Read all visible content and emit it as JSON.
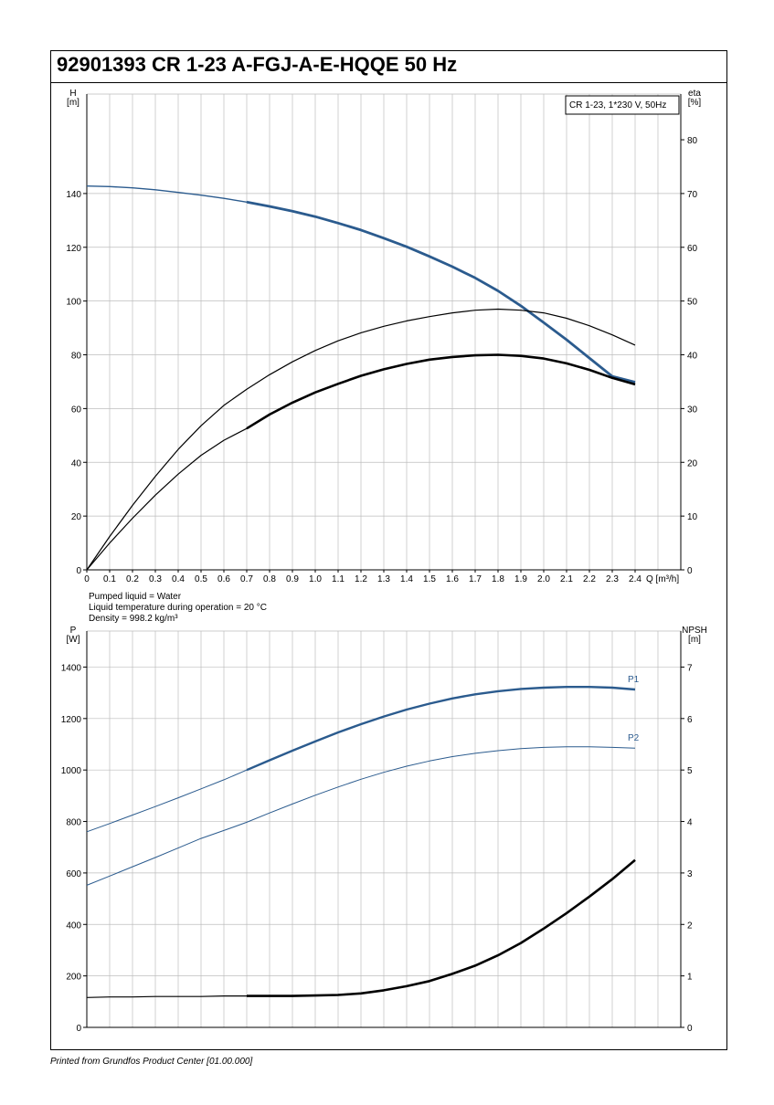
{
  "page": {
    "title": "92901393 CR 1-23 A-FGJ-A-E-HQQE 50 Hz",
    "footer": "Printed from Grundfos Product Center [01.00.000]",
    "info_lines": [
      "Pumped liquid = Water",
      "Liquid temperature during operation = 20 °C",
      "Density = 998.2 kg/m³"
    ]
  },
  "chart_data": [
    {
      "type": "line",
      "legend_box": "CR 1-23, 1*230 V, 50Hz",
      "legend_placement": "top-right",
      "grid": true,
      "x_axis": {
        "label": "Q [m³/h]",
        "range": [
          0,
          2.6
        ],
        "ticks": [
          0,
          0.1,
          0.2,
          0.3,
          0.4,
          0.5,
          0.6,
          0.7,
          0.8,
          0.9,
          1.0,
          1.1,
          1.2,
          1.3,
          1.4,
          1.5,
          1.6,
          1.7,
          1.8,
          1.9,
          2.0,
          2.1,
          2.2,
          2.3,
          2.4
        ],
        "tick_labels": [
          "0",
          "0.1",
          "0.2",
          "0.3",
          "0.4",
          "0.5",
          "0.6",
          "0.7",
          "0.8",
          "0.9",
          "1.0",
          "1.1",
          "1.2",
          "1.3",
          "1.4",
          "1.5",
          "1.6",
          "1.7",
          "1.8",
          "1.9",
          "2.0",
          "2.1",
          "2.2",
          "2.3",
          "2.4"
        ]
      },
      "y_axis_left": {
        "label_top": "H",
        "label_unit": "[m]",
        "range": [
          0,
          177
        ],
        "ticks": [
          0,
          20,
          40,
          60,
          80,
          100,
          120,
          140
        ]
      },
      "y_axis_right": {
        "label_top": "eta",
        "label_unit": "[%]",
        "range": [
          0,
          88.5
        ],
        "ticks": [
          0,
          10,
          20,
          30,
          40,
          50,
          60,
          70,
          80
        ]
      },
      "series": [
        {
          "axis": "left",
          "color": "#2b5b8e",
          "width": 1.4,
          "bold_from": 0.7,
          "x": [
            0,
            0.1,
            0.2,
            0.3,
            0.4,
            0.5,
            0.6,
            0.7,
            0.8,
            0.9,
            1.0,
            1.1,
            1.2,
            1.3,
            1.4,
            1.5,
            1.6,
            1.7,
            1.8,
            1.9,
            2.0,
            2.1,
            2.2,
            2.3,
            2.4
          ],
          "y": [
            142.8,
            142.6,
            142.1,
            141.4,
            140.4,
            139.4,
            138.2,
            136.8,
            135.2,
            133.4,
            131.4,
            129.0,
            126.4,
            123.4,
            120.2,
            116.6,
            112.8,
            108.6,
            103.8,
            98.2,
            92.0,
            85.6,
            78.8,
            72.0,
            69.8
          ]
        },
        {
          "axis": "right",
          "color": "#000000",
          "width": 1.2,
          "x": [
            0,
            0.1,
            0.2,
            0.3,
            0.4,
            0.5,
            0.6,
            0.7,
            0.8,
            0.9,
            1.0,
            1.1,
            1.2,
            1.3,
            1.4,
            1.5,
            1.6,
            1.7,
            1.8,
            1.9,
            2.0,
            2.1,
            2.2,
            2.3,
            2.4
          ],
          "y": [
            0,
            6.2,
            12.0,
            17.4,
            22.4,
            26.8,
            30.6,
            33.6,
            36.3,
            38.7,
            40.8,
            42.6,
            44.1,
            45.3,
            46.3,
            47.1,
            47.8,
            48.3,
            48.5,
            48.3,
            47.8,
            46.8,
            45.4,
            43.7,
            41.8
          ]
        },
        {
          "axis": "right",
          "color": "#000000",
          "width": 1.2,
          "bold_from": 0.7,
          "x": [
            0,
            0.1,
            0.2,
            0.3,
            0.4,
            0.5,
            0.6,
            0.7,
            0.8,
            0.9,
            1.0,
            1.1,
            1.2,
            1.3,
            1.4,
            1.5,
            1.6,
            1.7,
            1.8,
            1.9,
            2.0,
            2.1,
            2.2,
            2.3,
            2.4
          ],
          "y": [
            0,
            5.0,
            9.6,
            13.9,
            17.8,
            21.3,
            24.1,
            26.3,
            28.9,
            31.1,
            33.0,
            34.6,
            36.1,
            37.3,
            38.3,
            39.1,
            39.6,
            39.9,
            40.0,
            39.8,
            39.3,
            38.4,
            37.2,
            35.7,
            34.5
          ]
        }
      ]
    },
    {
      "type": "line",
      "grid": true,
      "x_axis": {
        "range": [
          0,
          2.6
        ]
      },
      "y_axis_left": {
        "label_top": "P",
        "label_unit": "[W]",
        "range": [
          0,
          1540
        ],
        "ticks": [
          0,
          200,
          400,
          600,
          800,
          1000,
          1200,
          1400
        ]
      },
      "y_axis_right": {
        "label_top": "NPSH",
        "label_unit": "[m]",
        "range": [
          0,
          7.7
        ],
        "ticks": [
          0,
          1,
          2,
          3,
          4,
          5,
          6,
          7
        ]
      },
      "series": [
        {
          "name": "P1",
          "axis": "left",
          "color": "#2b5b8e",
          "width": 1.0,
          "bold_from": 0.7,
          "x": [
            0,
            0.1,
            0.2,
            0.3,
            0.4,
            0.5,
            0.6,
            0.7,
            0.8,
            0.9,
            1.0,
            1.1,
            1.2,
            1.3,
            1.4,
            1.5,
            1.6,
            1.7,
            1.8,
            1.9,
            2.0,
            2.1,
            2.2,
            2.3,
            2.4
          ],
          "y": [
            760,
            792,
            825,
            858,
            892,
            927,
            962,
            1000,
            1038,
            1075,
            1111,
            1146,
            1178,
            1208,
            1235,
            1258,
            1278,
            1294,
            1306,
            1315,
            1320,
            1323,
            1323,
            1320,
            1313
          ]
        },
        {
          "name": "P2",
          "axis": "left",
          "color": "#2b5b8e",
          "width": 1.0,
          "x": [
            0,
            0.1,
            0.2,
            0.3,
            0.4,
            0.5,
            0.6,
            0.7,
            0.8,
            0.9,
            1.0,
            1.1,
            1.2,
            1.3,
            1.4,
            1.5,
            1.6,
            1.7,
            1.8,
            1.9,
            2.0,
            2.1,
            2.2,
            2.3,
            2.4
          ],
          "y": [
            552,
            588,
            624,
            660,
            697,
            734,
            765,
            797,
            833,
            868,
            902,
            934,
            964,
            991,
            1015,
            1035,
            1052,
            1065,
            1075,
            1083,
            1088,
            1090,
            1090,
            1088,
            1085
          ]
        },
        {
          "axis": "right",
          "color": "#000000",
          "width": 1.2,
          "bold_from": 0.7,
          "x": [
            0,
            0.1,
            0.2,
            0.3,
            0.4,
            0.5,
            0.6,
            0.7,
            0.8,
            0.9,
            1.0,
            1.1,
            1.2,
            1.3,
            1.4,
            1.5,
            1.6,
            1.7,
            1.8,
            1.9,
            2.0,
            2.1,
            2.2,
            2.3,
            2.4
          ],
          "y": [
            0.58,
            0.59,
            0.59,
            0.6,
            0.6,
            0.6,
            0.61,
            0.61,
            0.61,
            0.61,
            0.62,
            0.63,
            0.66,
            0.72,
            0.8,
            0.9,
            1.04,
            1.2,
            1.4,
            1.64,
            1.92,
            2.22,
            2.54,
            2.88,
            3.25
          ]
        }
      ]
    }
  ]
}
